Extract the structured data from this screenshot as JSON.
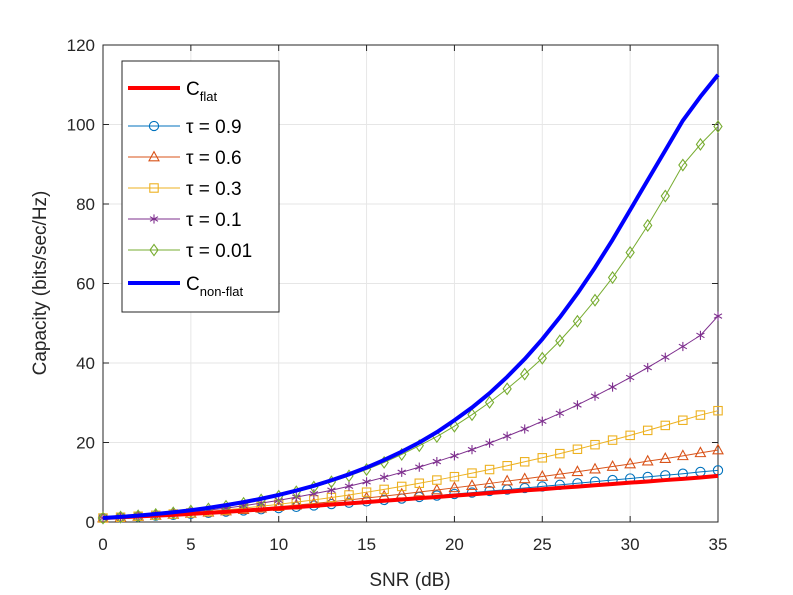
{
  "chart_data": {
    "type": "line",
    "title": "",
    "xlabel": "SNR (dB)",
    "ylabel": "Capacity (bits/sec/Hz)",
    "xlim": [
      0,
      35
    ],
    "ylim": [
      0,
      120
    ],
    "xticks": [
      0,
      5,
      10,
      15,
      20,
      25,
      30,
      35
    ],
    "yticks": [
      0,
      20,
      40,
      60,
      80,
      100,
      120
    ],
    "grid": true,
    "legend_position": "top-left",
    "x": [
      0,
      1,
      2,
      3,
      4,
      5,
      6,
      7,
      8,
      9,
      10,
      11,
      12,
      13,
      14,
      15,
      16,
      17,
      18,
      19,
      20,
      21,
      22,
      23,
      24,
      25,
      26,
      27,
      28,
      29,
      30,
      31,
      32,
      33,
      34,
      35
    ],
    "series": [
      {
        "name": "C",
        "sub": "flat",
        "tau": null,
        "color": "#ff0000",
        "marker": "none",
        "width": 4,
        "values": [
          1.0,
          1.2,
          1.4,
          1.6,
          1.8,
          2.05,
          2.3,
          2.55,
          2.85,
          3.15,
          3.45,
          3.75,
          4.05,
          4.4,
          4.7,
          5.0,
          5.35,
          5.65,
          6.0,
          6.3,
          6.65,
          6.95,
          7.3,
          7.6,
          7.95,
          8.25,
          8.6,
          8.9,
          9.25,
          9.55,
          9.9,
          10.2,
          10.55,
          10.85,
          11.2,
          11.6
        ]
      },
      {
        "name": "τ = 0.9",
        "sub": "",
        "tau": 0.9,
        "color": "#0072bd",
        "marker": "circle",
        "width": 1,
        "values": [
          1.0,
          1.2,
          1.4,
          1.6,
          1.8,
          2.05,
          2.3,
          2.6,
          2.9,
          3.2,
          3.5,
          3.8,
          4.15,
          4.5,
          4.85,
          5.2,
          5.55,
          5.9,
          6.3,
          6.65,
          7.05,
          7.4,
          7.8,
          8.15,
          8.55,
          8.95,
          9.35,
          9.75,
          10.15,
          10.55,
          10.95,
          11.35,
          11.75,
          12.15,
          12.6,
          13.0
        ]
      },
      {
        "name": "τ = 0.6",
        "sub": "",
        "tau": 0.6,
        "color": "#d95319",
        "marker": "triangle",
        "width": 1,
        "values": [
          1.0,
          1.2,
          1.4,
          1.65,
          1.9,
          2.15,
          2.45,
          2.75,
          3.1,
          3.45,
          3.85,
          4.25,
          4.65,
          5.1,
          5.55,
          6.05,
          6.5,
          7.0,
          7.55,
          8.05,
          8.6,
          9.15,
          9.7,
          10.3,
          10.85,
          11.45,
          12.05,
          12.65,
          13.3,
          13.95,
          14.6,
          15.3,
          15.95,
          16.65,
          17.4,
          18.1
        ]
      },
      {
        "name": "τ = 0.3",
        "sub": "",
        "tau": 0.3,
        "color": "#edb120",
        "marker": "square",
        "width": 1,
        "values": [
          1.0,
          1.2,
          1.45,
          1.7,
          2.0,
          2.3,
          2.65,
          3.05,
          3.5,
          3.95,
          4.45,
          5.0,
          5.55,
          6.15,
          6.8,
          7.5,
          8.2,
          8.95,
          9.75,
          10.55,
          11.4,
          12.3,
          13.2,
          14.15,
          15.15,
          16.15,
          17.2,
          18.3,
          19.45,
          20.6,
          21.8,
          23.05,
          24.3,
          25.6,
          26.9,
          28.0
        ]
      },
      {
        "name": "τ = 0.1",
        "sub": "",
        "tau": 0.1,
        "color": "#7e2f8e",
        "marker": "asterisk",
        "width": 1,
        "values": [
          1.0,
          1.25,
          1.5,
          1.8,
          2.15,
          2.55,
          3.0,
          3.5,
          4.1,
          4.75,
          5.45,
          6.25,
          7.1,
          8.0,
          9.0,
          10.1,
          11.25,
          12.5,
          13.8,
          15.2,
          16.65,
          18.2,
          19.85,
          21.6,
          23.4,
          25.35,
          27.35,
          29.45,
          31.65,
          33.95,
          36.35,
          38.85,
          41.45,
          44.15,
          46.95,
          51.8
        ]
      },
      {
        "name": "τ = 0.01",
        "sub": "",
        "tau": 0.01,
        "color": "#77ac30",
        "marker": "diamond",
        "width": 1,
        "values": [
          1.0,
          1.25,
          1.55,
          1.9,
          2.3,
          2.75,
          3.3,
          3.95,
          4.7,
          5.55,
          6.5,
          7.6,
          8.8,
          10.1,
          11.6,
          13.2,
          15.0,
          17.0,
          19.2,
          21.5,
          24.1,
          27.0,
          30.1,
          33.5,
          37.2,
          41.2,
          45.6,
          50.5,
          55.8,
          61.5,
          67.8,
          74.6,
          82.0,
          89.8,
          95.0,
          99.5
        ]
      },
      {
        "name": "C",
        "sub": "non-flat",
        "tau": null,
        "color": "#0000ff",
        "marker": "none",
        "width": 4,
        "values": [
          1.0,
          1.3,
          1.6,
          2.0,
          2.45,
          2.95,
          3.55,
          4.25,
          5.0,
          5.85,
          6.8,
          7.9,
          9.1,
          10.5,
          12.0,
          13.7,
          15.6,
          17.7,
          20.0,
          22.6,
          25.6,
          28.8,
          32.4,
          36.5,
          41.0,
          46.0,
          51.5,
          57.5,
          64.0,
          71.0,
          78.5,
          86.0,
          93.5,
          101.0,
          107.0,
          112.5
        ]
      }
    ]
  }
}
